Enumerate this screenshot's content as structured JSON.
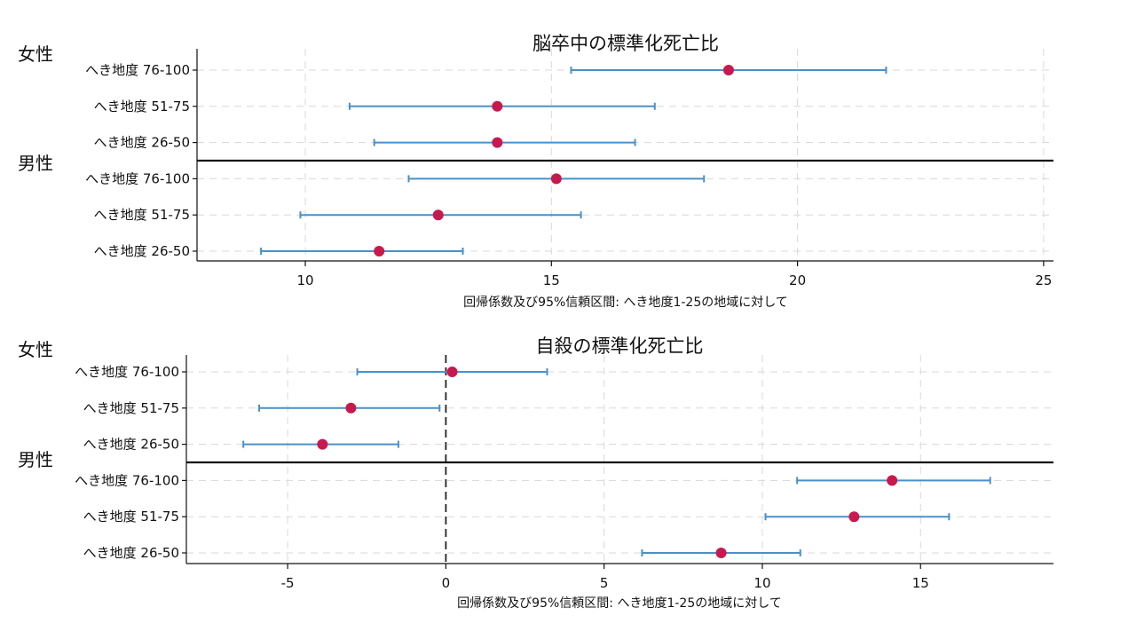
{
  "chart_data": [
    {
      "type": "forest",
      "title": "脳卒中の標準化死亡比",
      "xlabel": "回帰係数及び95%信頼区間: へき地度1-25の地域に対して",
      "xlim": [
        7.8,
        25.2
      ],
      "xticks": [
        10,
        15,
        20,
        25
      ],
      "reference_line": null,
      "groups": [
        {
          "label": "女性",
          "rows": [
            {
              "label": "へき地度 76-100",
              "estimate": 18.6,
              "lower": 15.4,
              "upper": 21.8
            },
            {
              "label": "へき地度 51-75",
              "estimate": 13.9,
              "lower": 10.9,
              "upper": 17.1
            },
            {
              "label": "へき地度 26-50",
              "estimate": 13.9,
              "lower": 11.4,
              "upper": 16.7
            }
          ]
        },
        {
          "label": "男性",
          "rows": [
            {
              "label": "へき地度 76-100",
              "estimate": 15.1,
              "lower": 12.1,
              "upper": 18.1
            },
            {
              "label": "へき地度 51-75",
              "estimate": 12.7,
              "lower": 9.9,
              "upper": 15.6
            },
            {
              "label": "へき地度 26-50",
              "estimate": 11.5,
              "lower": 9.1,
              "upper": 13.2
            }
          ]
        }
      ]
    },
    {
      "type": "forest",
      "title": "自殺の標準化死亡比",
      "xlabel": "回帰係数及び95%信頼区間: へき地度1-25の地域に対して",
      "xlim": [
        -8.2,
        19.2
      ],
      "xticks": [
        -5,
        0,
        5,
        10,
        15
      ],
      "reference_line": 0,
      "groups": [
        {
          "label": "女性",
          "rows": [
            {
              "label": "へき地度 76-100",
              "estimate": 0.2,
              "lower": -2.8,
              "upper": 3.2
            },
            {
              "label": "へき地度 51-75",
              "estimate": -3.0,
              "lower": -5.9,
              "upper": -0.2
            },
            {
              "label": "へき地度 26-50",
              "estimate": -3.9,
              "lower": -6.4,
              "upper": -1.5
            }
          ]
        },
        {
          "label": "男性",
          "rows": [
            {
              "label": "へき地度 76-100",
              "estimate": 14.1,
              "lower": 11.1,
              "upper": 17.2
            },
            {
              "label": "へき地度 51-75",
              "estimate": 12.9,
              "lower": 10.1,
              "upper": 15.9
            },
            {
              "label": "へき地度 26-50",
              "estimate": 8.7,
              "lower": 6.2,
              "upper": 11.2
            }
          ]
        }
      ]
    }
  ],
  "style": {
    "ci_color": "#4a90c8",
    "point_color": "#c8194f",
    "grid_color": "#d8d8d8",
    "axis_color": "#111111"
  }
}
